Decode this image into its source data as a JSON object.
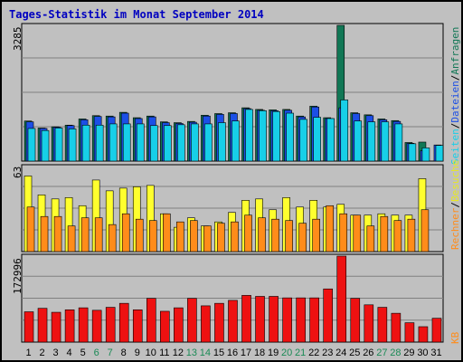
{
  "title": "Tages-Statistik im Monat September 2014",
  "colors": {
    "anfragen": "#117755",
    "dateien": "#1c4fe6",
    "seiten": "#17cfe8",
    "besuche": "#ffff2e",
    "rechner": "#ff8c1a",
    "kb": "#ee1111",
    "weekend": "#1a8a55",
    "title": "#0000c0"
  },
  "legend_top": {
    "sep": "/",
    "anfragen": "Anfragen",
    "dateien": "Dateien",
    "seiten": "Seiten"
  },
  "legend_mid": {
    "sep": "/",
    "besuche": "Besuche",
    "rechner": "Rechner"
  },
  "legend_bot": {
    "kb": "KB"
  },
  "chart_data": {
    "type": "bar",
    "categories": [
      "1",
      "2",
      "3",
      "4",
      "5",
      "6",
      "7",
      "8",
      "9",
      "10",
      "11",
      "12",
      "13",
      "14",
      "15",
      "16",
      "17",
      "18",
      "19",
      "20",
      "21",
      "22",
      "23",
      "24",
      "25",
      "26",
      "27",
      "28",
      "29",
      "30",
      "31"
    ],
    "weekend_days": [
      6,
      7,
      13,
      14,
      20,
      21,
      27,
      28
    ],
    "panels": [
      {
        "ymax_label": "3285",
        "ylim": [
          0,
          3285
        ],
        "series": [
          {
            "name": "Anfragen",
            "values": [
              970,
              800,
              830,
              870,
              1020,
              1100,
              1090,
              1180,
              1050,
              1090,
              950,
              930,
              960,
              1110,
              1150,
              1170,
              1290,
              1250,
              1240,
              1250,
              1090,
              1330,
              1050,
              3285,
              1170,
              1120,
              1020,
              980,
              450,
              460,
              0
            ]
          },
          {
            "name": "Dateien",
            "values": [
              950,
              790,
              820,
              860,
              1000,
              1080,
              1070,
              1160,
              1030,
              1070,
              930,
              910,
              940,
              1090,
              1130,
              1150,
              1270,
              1230,
              1220,
              1230,
              1070,
              1310,
              1030,
              1290,
              1150,
              1100,
              1000,
              960,
              430,
              250,
              390
            ]
          },
          {
            "name": "Seiten",
            "values": [
              790,
              740,
              800,
              780,
              870,
              870,
              900,
              900,
              900,
              860,
              860,
              880,
              900,
              900,
              930,
              970,
              1250,
              1220,
              1200,
              1160,
              1010,
              1060,
              1030,
              1480,
              970,
              950,
              950,
              900,
              420,
              320,
              380
            ]
          }
        ]
      },
      {
        "ymax_label": "63",
        "ylim": [
          0,
          63
        ],
        "series": [
          {
            "name": "Besuche",
            "values": [
              56,
              42,
              39,
              40,
              34,
              53,
              45,
              47,
              48,
              49,
              28,
              18,
              25,
              19,
              22,
              29,
              38,
              39,
              31,
              40,
              33,
              38,
              33,
              35,
              27,
              27,
              28,
              27,
              27,
              54,
              0
            ]
          },
          {
            "name": "Rechner",
            "values": [
              33,
              26,
              26,
              19,
              25,
              25,
              20,
              28,
              24,
              23,
              28,
              22,
              23,
              19,
              21,
              22,
              27,
              25,
              24,
              23,
              21,
              24,
              34,
              28,
              27,
              19,
              26,
              23,
              24,
              31,
              0
            ]
          }
        ]
      },
      {
        "ymax_label": "172996",
        "ylim": [
          0,
          172996
        ],
        "series": [
          {
            "name": "KB",
            "values": [
              61000,
              68000,
              60000,
              65000,
              69000,
              64000,
              70000,
              78000,
              65000,
              88000,
              62000,
              69000,
              88000,
              73000,
              78000,
              84000,
              94000,
              92000,
              92000,
              89000,
              89000,
              89000,
              107000,
              172996,
              88000,
              75000,
              70000,
              58000,
              39000,
              31000,
              48000
            ]
          }
        ]
      }
    ]
  }
}
